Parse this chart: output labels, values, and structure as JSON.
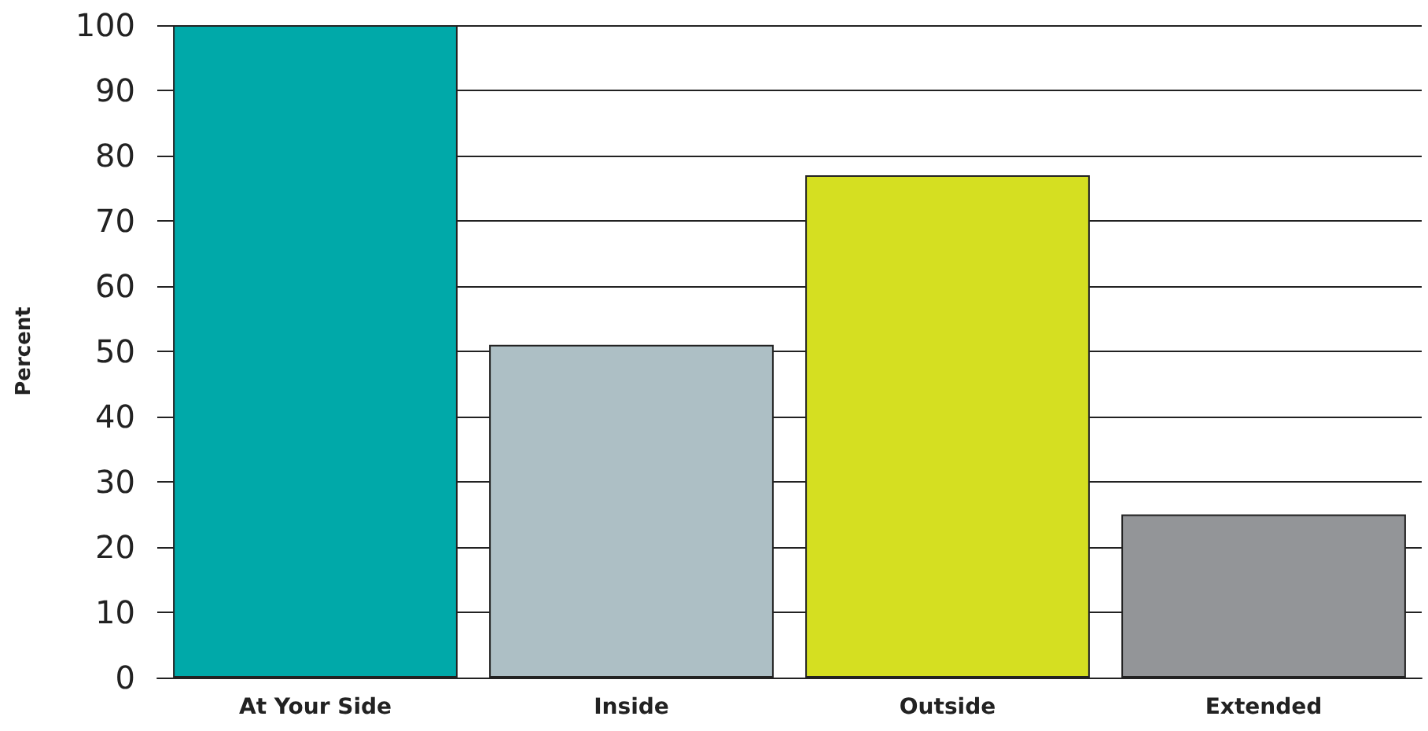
{
  "chart_data": {
    "type": "bar",
    "ylabel": "Percent",
    "categories": [
      "At Your Side",
      "Inside",
      "Outside",
      "Extended"
    ],
    "values": [
      100,
      51,
      77,
      25
    ],
    "colors": [
      "#00a9a9",
      "#adbfc5",
      "#d5df21",
      "#939598"
    ],
    "ylim": [
      0,
      100
    ],
    "yticks": [
      0,
      10,
      20,
      30,
      40,
      50,
      60,
      70,
      80,
      90,
      100
    ],
    "grid": "y"
  }
}
